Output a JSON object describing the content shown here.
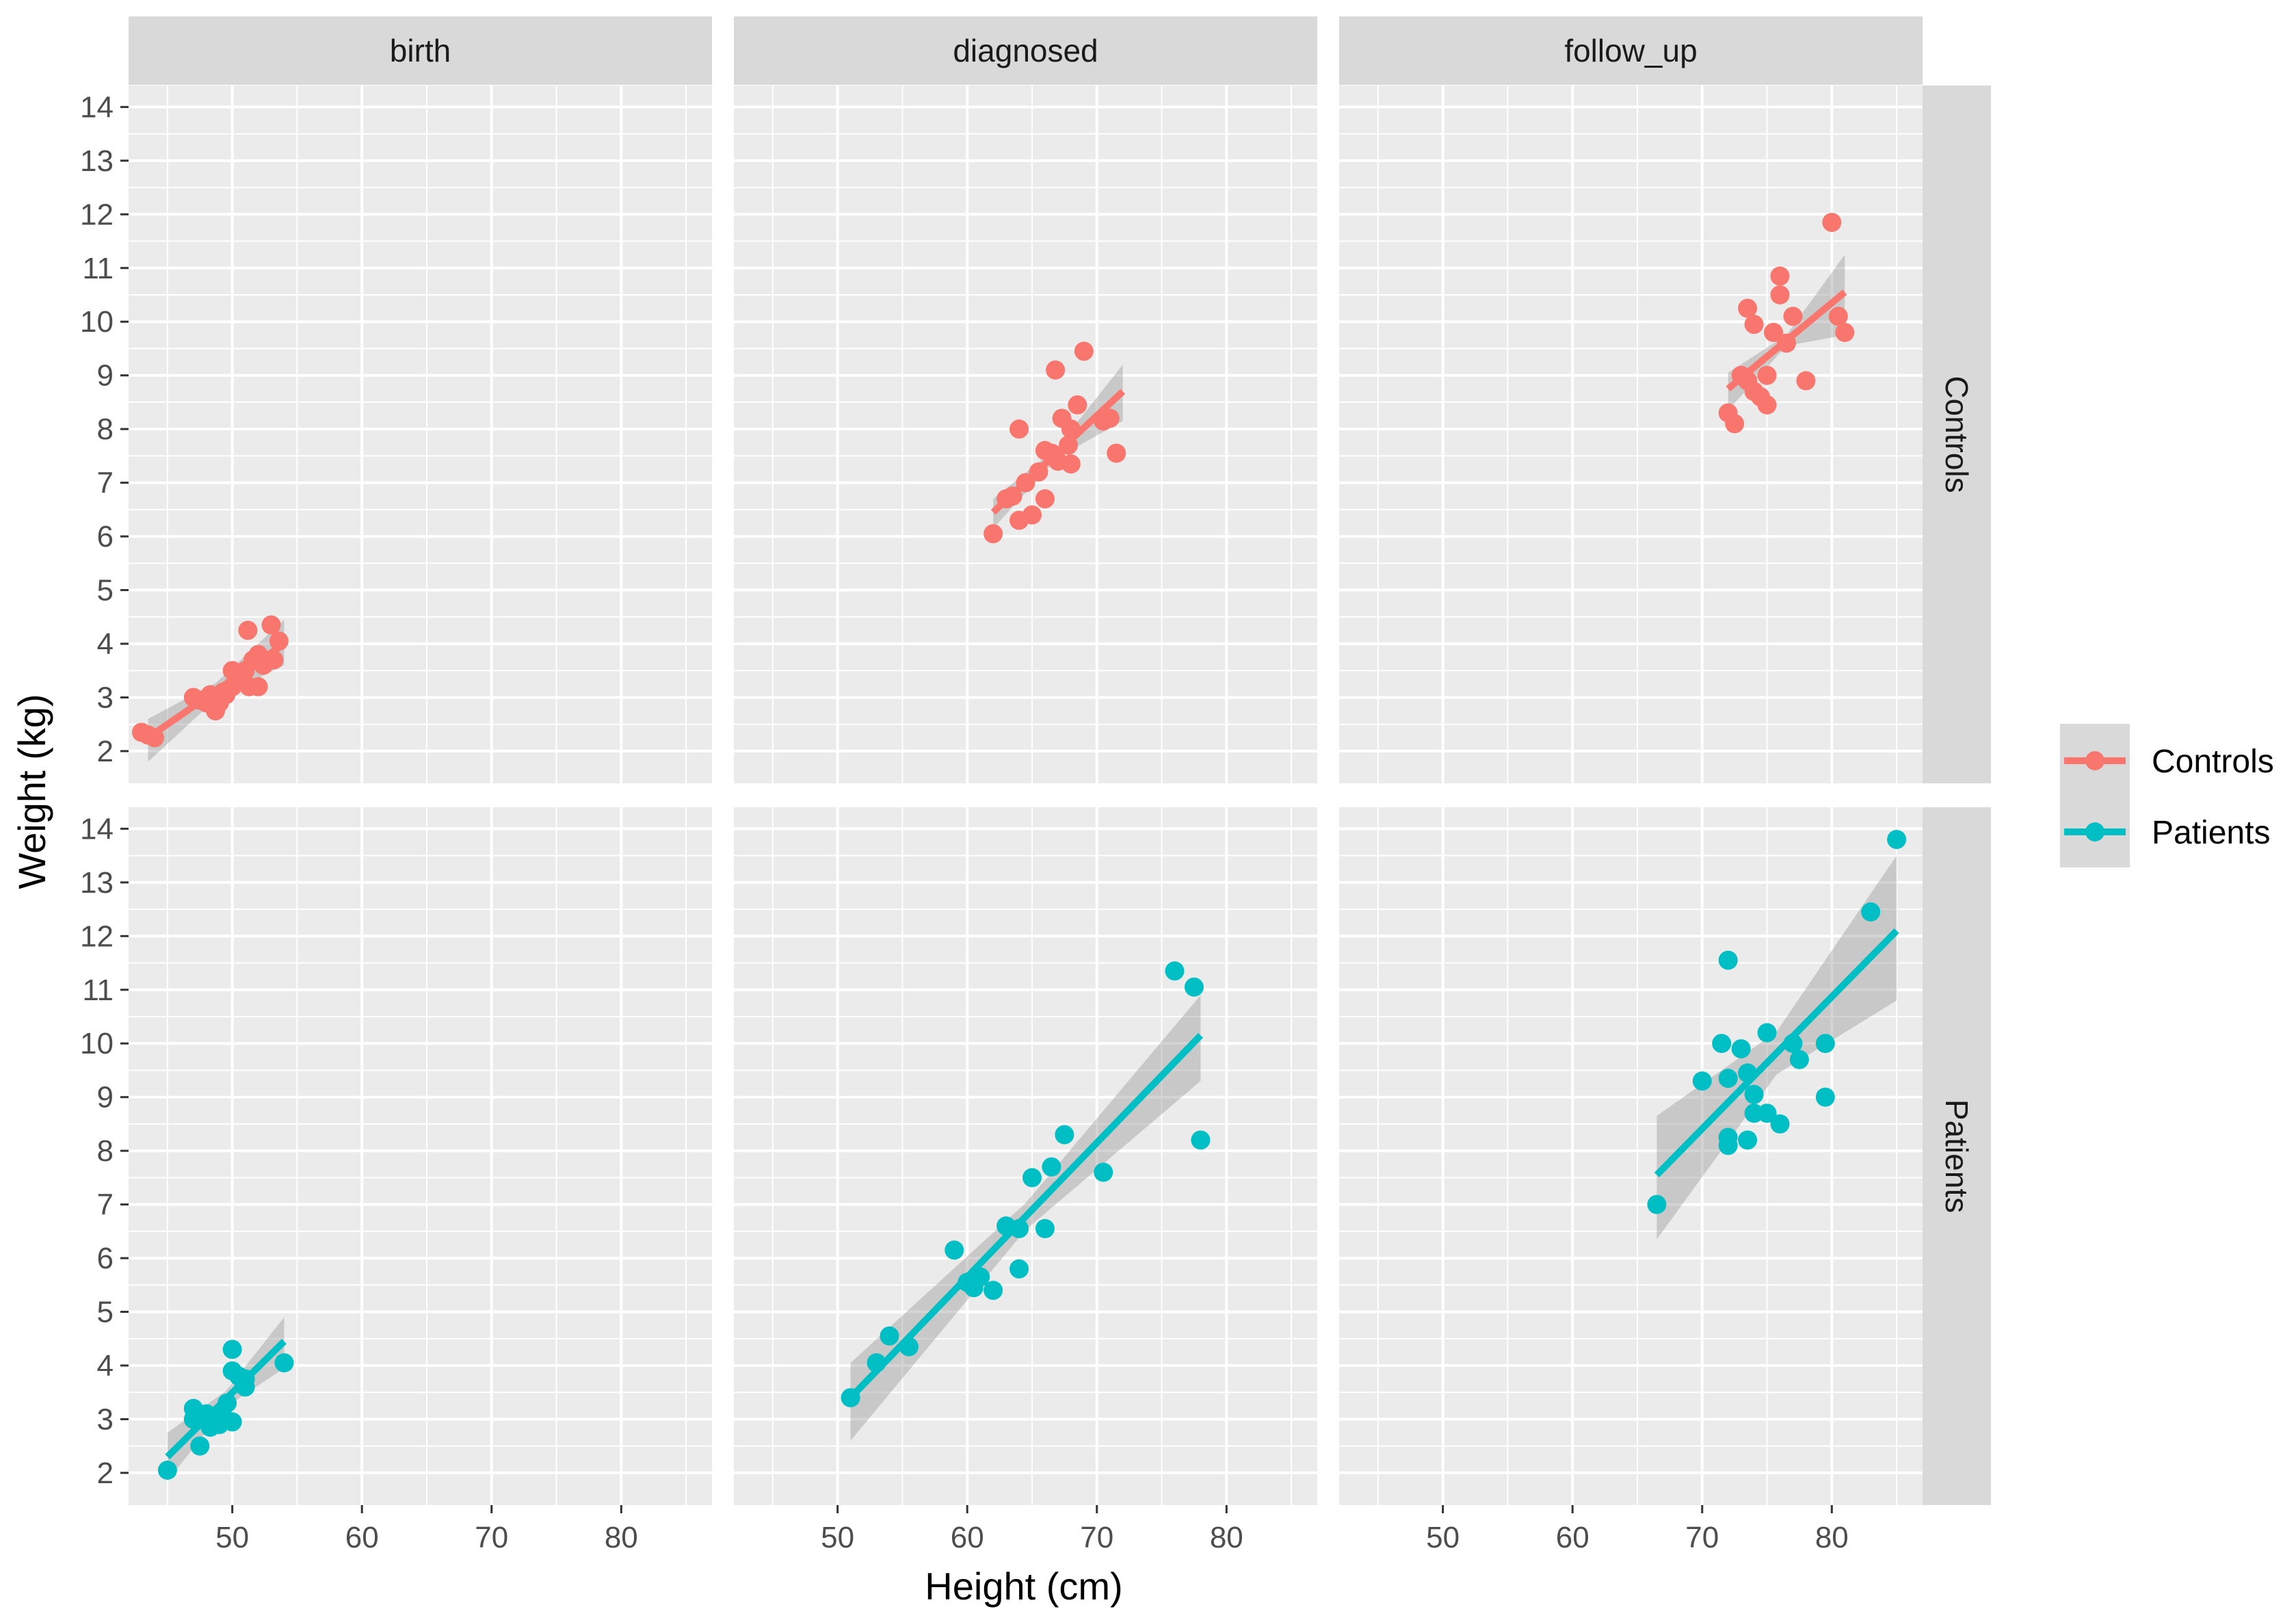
{
  "chart_data": {
    "type": "scatter",
    "xlabel": "Height (cm)",
    "ylabel": "Weight (kg)",
    "xlim": [
      42,
      87
    ],
    "ylim": [
      1.4,
      14.4
    ],
    "x_ticks": [
      50,
      60,
      70,
      80
    ],
    "y_ticks": [
      2,
      3,
      4,
      5,
      6,
      7,
      8,
      9,
      10,
      11,
      12,
      13,
      14
    ],
    "grid": true,
    "columns": [
      "birth",
      "diagnosed",
      "follow_up"
    ],
    "rows": [
      "Controls",
      "Patients"
    ],
    "legend": {
      "position": "right",
      "entries": [
        {
          "name": "Controls",
          "color": "#F8766D"
        },
        {
          "name": "Patients",
          "color": "#00BFC4"
        }
      ]
    },
    "panels": [
      {
        "row": "Controls",
        "col": "birth",
        "color": "#F8766D",
        "fit": {
          "x": [
            43.5,
            54
          ],
          "y": [
            2.25,
            4.0
          ],
          "band": [
            [
              0.35,
              0.15,
              0.45
            ],
            [
              0.45,
              0.15,
              0.4
            ]
          ]
        },
        "points": [
          [
            43,
            2.35
          ],
          [
            43.5,
            2.3
          ],
          [
            44,
            2.25
          ],
          [
            47,
            3.0
          ],
          [
            47.5,
            2.95
          ],
          [
            48,
            2.9
          ],
          [
            48.3,
            3.05
          ],
          [
            48.7,
            2.75
          ],
          [
            49,
            2.9
          ],
          [
            49.3,
            3.1
          ],
          [
            49.5,
            3.05
          ],
          [
            50,
            3.5
          ],
          [
            50,
            3.2
          ],
          [
            50.5,
            3.3
          ],
          [
            51,
            3.5
          ],
          [
            51.2,
            4.25
          ],
          [
            51.3,
            3.2
          ],
          [
            51.6,
            3.7
          ],
          [
            52,
            3.8
          ],
          [
            52,
            3.2
          ],
          [
            52.4,
            3.6
          ],
          [
            53,
            4.35
          ],
          [
            53.2,
            3.7
          ],
          [
            53.6,
            4.05
          ]
        ]
      },
      {
        "row": "Controls",
        "col": "diagnosed",
        "color": "#F8766D",
        "fit": {
          "x": [
            62,
            72
          ],
          "y": [
            6.45,
            8.7
          ],
          "band": [
            [
              0.25,
              0.1,
              0.5
            ],
            [
              0.3,
              0.1,
              0.55
            ]
          ]
        },
        "points": [
          [
            62,
            6.05
          ],
          [
            63,
            6.7
          ],
          [
            63.5,
            6.75
          ],
          [
            64,
            8.0
          ],
          [
            64,
            6.3
          ],
          [
            64.5,
            7.0
          ],
          [
            65,
            6.4
          ],
          [
            65.5,
            7.2
          ],
          [
            66,
            6.7
          ],
          [
            66,
            7.6
          ],
          [
            66.5,
            7.55
          ],
          [
            66.8,
            9.1
          ],
          [
            67,
            7.4
          ],
          [
            67.3,
            8.2
          ],
          [
            67.8,
            7.7
          ],
          [
            68,
            8.0
          ],
          [
            68,
            7.35
          ],
          [
            68.5,
            8.45
          ],
          [
            69,
            9.45
          ],
          [
            70.5,
            8.15
          ],
          [
            71,
            8.2
          ],
          [
            71.5,
            7.55
          ]
        ]
      },
      {
        "row": "Controls",
        "col": "follow_up",
        "color": "#F8766D",
        "fit": {
          "x": [
            72,
            81
          ],
          "y": [
            8.75,
            10.55
          ],
          "band": [
            [
              0.3,
              0.1,
              0.7
            ],
            [
              0.4,
              0.1,
              0.8
            ]
          ]
        },
        "points": [
          [
            72,
            8.3
          ],
          [
            72.5,
            8.1
          ],
          [
            73,
            9.0
          ],
          [
            73.5,
            10.25
          ],
          [
            73.5,
            8.9
          ],
          [
            74,
            9.95
          ],
          [
            74,
            8.7
          ],
          [
            74.5,
            8.6
          ],
          [
            75,
            9.0
          ],
          [
            75,
            8.45
          ],
          [
            75.5,
            9.8
          ],
          [
            76,
            10.85
          ],
          [
            76,
            10.5
          ],
          [
            76.5,
            9.6
          ],
          [
            77,
            10.1
          ],
          [
            78,
            8.9
          ],
          [
            80,
            11.85
          ],
          [
            80.5,
            10.1
          ],
          [
            81,
            9.8
          ]
        ]
      },
      {
        "row": "Patients",
        "col": "birth",
        "color": "#00BFC4",
        "fit": {
          "x": [
            45,
            54
          ],
          "y": [
            2.3,
            4.45
          ],
          "band": [
            [
              0.45,
              0.15,
              0.45
            ],
            [
              0.45,
              0.15,
              0.5
            ]
          ]
        },
        "points": [
          [
            45,
            2.05
          ],
          [
            47,
            3.2
          ],
          [
            47,
            3.0
          ],
          [
            47.5,
            2.5
          ],
          [
            48,
            3.1
          ],
          [
            48.3,
            2.85
          ],
          [
            49,
            2.9
          ],
          [
            49.3,
            3.05
          ],
          [
            49.6,
            3.3
          ],
          [
            50,
            4.3
          ],
          [
            50,
            3.9
          ],
          [
            50,
            2.95
          ],
          [
            50.5,
            3.8
          ],
          [
            51,
            3.6
          ],
          [
            51,
            3.75
          ],
          [
            54,
            4.05
          ]
        ]
      },
      {
        "row": "Patients",
        "col": "diagnosed",
        "color": "#00BFC4",
        "fit": {
          "x": [
            51,
            78
          ],
          "y": [
            3.4,
            10.15
          ],
          "band": [
            [
              0.65,
              0.25,
              0.75
            ],
            [
              0.8,
              0.25,
              0.85
            ]
          ]
        },
        "points": [
          [
            51,
            3.4
          ],
          [
            53,
            4.05
          ],
          [
            54,
            4.55
          ],
          [
            55.5,
            4.35
          ],
          [
            59,
            6.15
          ],
          [
            60,
            5.55
          ],
          [
            60.5,
            5.45
          ],
          [
            61,
            5.65
          ],
          [
            62,
            5.4
          ],
          [
            63,
            6.6
          ],
          [
            64,
            5.8
          ],
          [
            64,
            6.55
          ],
          [
            65,
            7.5
          ],
          [
            66,
            6.55
          ],
          [
            66.5,
            7.7
          ],
          [
            67.5,
            8.3
          ],
          [
            70.5,
            7.6
          ],
          [
            76,
            11.35
          ],
          [
            77.5,
            11.05
          ],
          [
            78,
            8.2
          ]
        ]
      },
      {
        "row": "Patients",
        "col": "follow_up",
        "color": "#00BFC4",
        "fit": {
          "x": [
            66.5,
            85
          ],
          "y": [
            7.55,
            12.1
          ],
          "band": [
            [
              1.1,
              0.4,
              1.4
            ],
            [
              1.2,
              0.4,
              1.3
            ]
          ]
        },
        "points": [
          [
            66.5,
            7.0
          ],
          [
            70,
            9.3
          ],
          [
            71.5,
            10.0
          ],
          [
            72,
            11.55
          ],
          [
            72,
            9.35
          ],
          [
            72,
            8.25
          ],
          [
            72,
            8.1
          ],
          [
            73,
            9.9
          ],
          [
            73.5,
            9.45
          ],
          [
            73.5,
            8.2
          ],
          [
            74,
            9.05
          ],
          [
            74,
            8.7
          ],
          [
            75,
            10.2
          ],
          [
            75,
            8.7
          ],
          [
            76,
            8.5
          ],
          [
            77,
            10.0
          ],
          [
            77.5,
            9.7
          ],
          [
            79.5,
            10.0
          ],
          [
            79.5,
            9.0
          ],
          [
            83,
            12.45
          ],
          [
            85,
            13.8
          ]
        ]
      }
    ]
  }
}
